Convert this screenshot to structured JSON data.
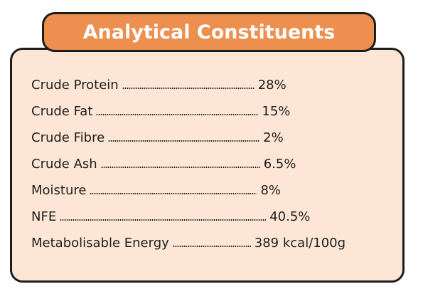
{
  "header": {
    "title": "Analytical Constituents"
  },
  "constituents": [
    {
      "name": "Crude Protein",
      "value": "28%"
    },
    {
      "name": "Crude Fat",
      "value": "15%"
    },
    {
      "name": "Crude Fibre",
      "value": "2%"
    },
    {
      "name": "Crude Ash",
      "value": "6.5%"
    },
    {
      "name": "Moisture",
      "value": "8%"
    },
    {
      "name": "NFE",
      "value": "40.5%"
    },
    {
      "name": "Metabolisable Energy",
      "value": "389 kcal/100g"
    }
  ],
  "colors": {
    "panel_background": "#fde6d6",
    "header_background": "#ec8f4f",
    "border": "#1d1d1b",
    "header_text": "#ffffff"
  }
}
